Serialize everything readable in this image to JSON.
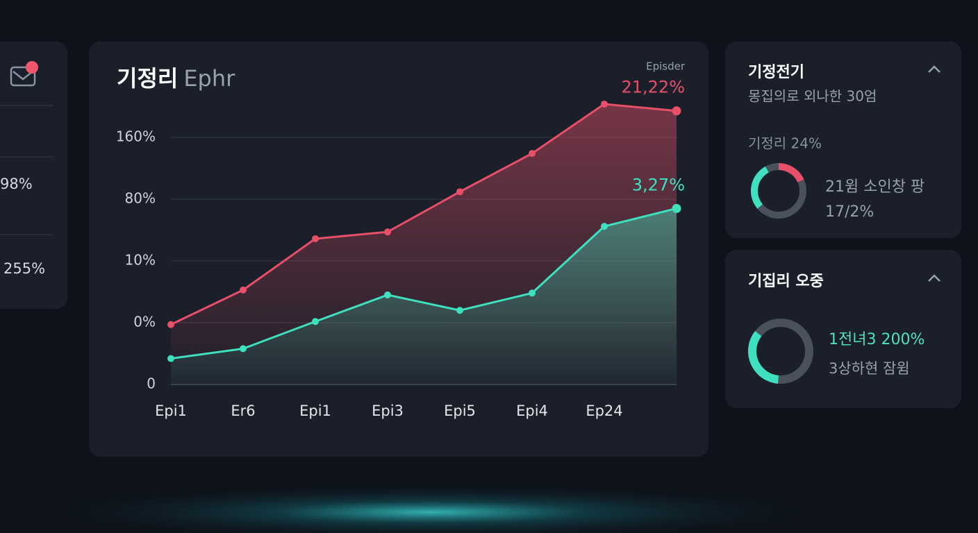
{
  "chart_data": {
    "type": "line",
    "title": "기정리",
    "subtitle": "Ephr",
    "legend_note": "Episder",
    "categories": [
      "Epi1",
      "Er6",
      "Epi1",
      "Epi3",
      "Epi5",
      "Epi4",
      "Ep24",
      null
    ],
    "series": [
      {
        "name": null,
        "color": "#e8506a",
        "values": [
          0.97,
          1.53,
          2.36,
          2.47,
          3.12,
          3.74,
          4.54,
          4.43
        ],
        "end_label": "21,22%"
      },
      {
        "name": null,
        "color": "#3ee0c0",
        "values": [
          0.42,
          0.58,
          1.02,
          1.45,
          1.2,
          1.48,
          2.56,
          2.85
        ],
        "end_label": "3,27%"
      }
    ],
    "ylim": [
      0,
      4.7
    ],
    "yticks": [
      {
        "value": 0,
        "label": "0"
      },
      {
        "value": 1,
        "label": "0%"
      },
      {
        "value": 2,
        "label": "10%"
      },
      {
        "value": 3,
        "label": "80%"
      },
      {
        "value": 4,
        "label": "160%"
      }
    ],
    "grid": true
  },
  "left_panel": {
    "rows": [
      "98%",
      "255%"
    ]
  },
  "panels": [
    {
      "title": "기정전기",
      "subtitle": "몽집의로 외나한 30엄",
      "label": "기정리 24%",
      "lines": [
        "21윔 소인창 팡",
        "17/2%"
      ]
    },
    {
      "title": "기집리 오중",
      "lines": [
        "1전녀3 200%",
        "3상하현 잠윔"
      ]
    }
  ]
}
